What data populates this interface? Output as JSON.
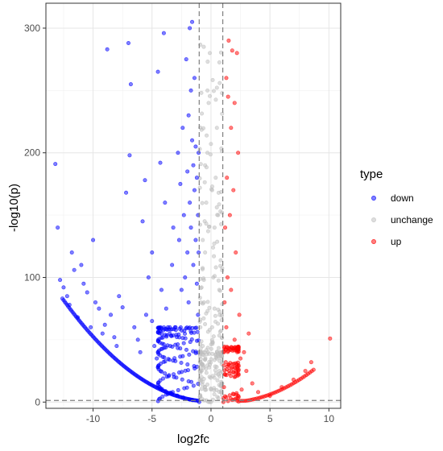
{
  "chart_data": {
    "type": "scatter",
    "title": "",
    "xlabel": "log2fc",
    "ylabel": "-log10(p)",
    "xlim": [
      -14,
      11
    ],
    "ylim": [
      -5,
      320
    ],
    "xticks": [
      -10,
      -5,
      0,
      5,
      10
    ],
    "yticks": [
      0,
      100,
      200,
      300
    ],
    "grid": true,
    "threshold_lines": {
      "x": [
        -1,
        1
      ],
      "y": [
        1.3
      ]
    },
    "legend": {
      "title": "type",
      "position": "right",
      "entries": [
        {
          "name": "down",
          "color": "#0000ff"
        },
        {
          "name": "unchange",
          "color": "#bebebe"
        },
        {
          "name": "up",
          "color": "#ff0000"
        }
      ]
    },
    "series": [
      {
        "name": "down",
        "color": "#0000ff",
        "points": [
          [
            -13.2,
            191
          ],
          [
            -13.0,
            140
          ],
          [
            -12.8,
            98
          ],
          [
            -12.5,
            92
          ],
          [
            -12.2,
            85
          ],
          [
            -12.0,
            78
          ],
          [
            -11.8,
            120
          ],
          [
            -11.6,
            106
          ],
          [
            -11.3,
            68
          ],
          [
            -11.0,
            110
          ],
          [
            -10.8,
            95
          ],
          [
            -10.5,
            88
          ],
          [
            -10.2,
            60
          ],
          [
            -10.0,
            130
          ],
          [
            -9.8,
            80
          ],
          [
            -9.5,
            75
          ],
          [
            -9.2,
            55
          ],
          [
            -9.0,
            62
          ],
          [
            -8.8,
            283
          ],
          [
            -8.5,
            70
          ],
          [
            -8.2,
            52
          ],
          [
            -8.0,
            45
          ],
          [
            -7.8,
            85
          ],
          [
            -7.5,
            76
          ],
          [
            -7.2,
            168
          ],
          [
            -7.0,
            288
          ],
          [
            -6.9,
            198
          ],
          [
            -6.8,
            255
          ],
          [
            -6.5,
            60
          ],
          [
            -6.2,
            50
          ],
          [
            -6.0,
            40
          ],
          [
            -5.8,
            145
          ],
          [
            -5.6,
            178
          ],
          [
            -5.5,
            70
          ],
          [
            -5.3,
            100
          ],
          [
            -5.0,
            120
          ],
          [
            -5.0,
            65
          ],
          [
            -4.8,
            45
          ],
          [
            -4.6,
            35
          ],
          [
            -4.5,
            265
          ],
          [
            -4.3,
            192
          ],
          [
            -4.2,
            90
          ],
          [
            -4.0,
            296
          ],
          [
            -3.9,
            160
          ],
          [
            -3.8,
            75
          ],
          [
            -3.5,
            55
          ],
          [
            -3.3,
            110
          ],
          [
            -3.2,
            140
          ],
          [
            -3.0,
            60
          ],
          [
            -2.8,
            200
          ],
          [
            -2.7,
            130
          ],
          [
            -2.6,
            175
          ],
          [
            -2.5,
            90
          ],
          [
            -2.4,
            220
          ],
          [
            -2.3,
            150
          ],
          [
            -2.2,
            100
          ],
          [
            -2.1,
            275
          ],
          [
            -2.0,
            185
          ],
          [
            -2.0,
            120
          ],
          [
            -1.9,
            80
          ],
          [
            -1.9,
            230
          ],
          [
            -1.8,
            300
          ],
          [
            -1.8,
            160
          ],
          [
            -1.7,
            250
          ],
          [
            -1.7,
            140
          ],
          [
            -1.6,
            305
          ],
          [
            -1.6,
            210
          ],
          [
            -1.5,
            190
          ],
          [
            -1.5,
            110
          ],
          [
            -1.4,
            260
          ],
          [
            -1.4,
            170
          ],
          [
            -1.3,
            205
          ],
          [
            -1.3,
            130
          ],
          [
            -1.2,
            180
          ],
          [
            -1.2,
            95
          ],
          [
            -1.1,
            150
          ],
          [
            -1.1,
            70
          ],
          [
            -1.05,
            200
          ],
          [
            -1.05,
            120
          ]
        ]
      },
      {
        "name": "unchange",
        "color": "#bebebe",
        "points": [
          [
            -0.9,
            5
          ],
          [
            -0.8,
            20
          ],
          [
            -0.7,
            45
          ],
          [
            -0.6,
            80
          ],
          [
            -0.5,
            120
          ],
          [
            -0.4,
            160
          ],
          [
            -0.3,
            200
          ],
          [
            -0.2,
            240
          ],
          [
            -0.1,
            280
          ],
          [
            0.0,
            10
          ],
          [
            0.1,
            60
          ],
          [
            0.2,
            100
          ],
          [
            0.3,
            140
          ],
          [
            0.4,
            180
          ],
          [
            0.5,
            220
          ],
          [
            0.6,
            150
          ],
          [
            0.7,
            90
          ],
          [
            0.8,
            40
          ],
          [
            0.9,
            15
          ],
          [
            -0.9,
            60
          ],
          [
            -0.7,
            130
          ],
          [
            -0.5,
            190
          ],
          [
            -0.3,
            250
          ],
          [
            -0.1,
            30
          ],
          [
            0.1,
            170
          ],
          [
            0.3,
            75
          ],
          [
            0.5,
            35
          ],
          [
            0.7,
            25
          ],
          [
            0.9,
            8
          ]
        ]
      },
      {
        "name": "up",
        "color": "#ff0000",
        "points": [
          [
            1.05,
            3
          ],
          [
            1.1,
            12
          ],
          [
            1.1,
            40
          ],
          [
            1.15,
            80
          ],
          [
            1.2,
            140
          ],
          [
            1.2,
            22
          ],
          [
            1.3,
            260
          ],
          [
            1.3,
            60
          ],
          [
            1.35,
            180
          ],
          [
            1.4,
            100
          ],
          [
            1.45,
            245
          ],
          [
            1.5,
            30
          ],
          [
            1.5,
            290
          ],
          [
            1.6,
            150
          ],
          [
            1.7,
            220
          ],
          [
            1.7,
            90
          ],
          [
            1.8,
            282
          ],
          [
            1.9,
            170
          ],
          [
            2.0,
            50
          ],
          [
            2.0,
            240
          ],
          [
            2.1,
            120
          ],
          [
            2.2,
            280
          ],
          [
            2.3,
            200
          ],
          [
            2.4,
            70
          ],
          [
            2.5,
            35
          ],
          [
            2.6,
            10
          ],
          [
            2.8,
            40
          ],
          [
            3.0,
            25
          ],
          [
            3.2,
            55
          ],
          [
            3.5,
            15
          ],
          [
            4.0,
            8
          ],
          [
            5.0,
            5
          ],
          [
            6.0,
            12
          ],
          [
            7.0,
            18
          ],
          [
            8.0,
            25
          ],
          [
            8.5,
            32
          ],
          [
            10.1,
            51
          ]
        ]
      }
    ]
  }
}
